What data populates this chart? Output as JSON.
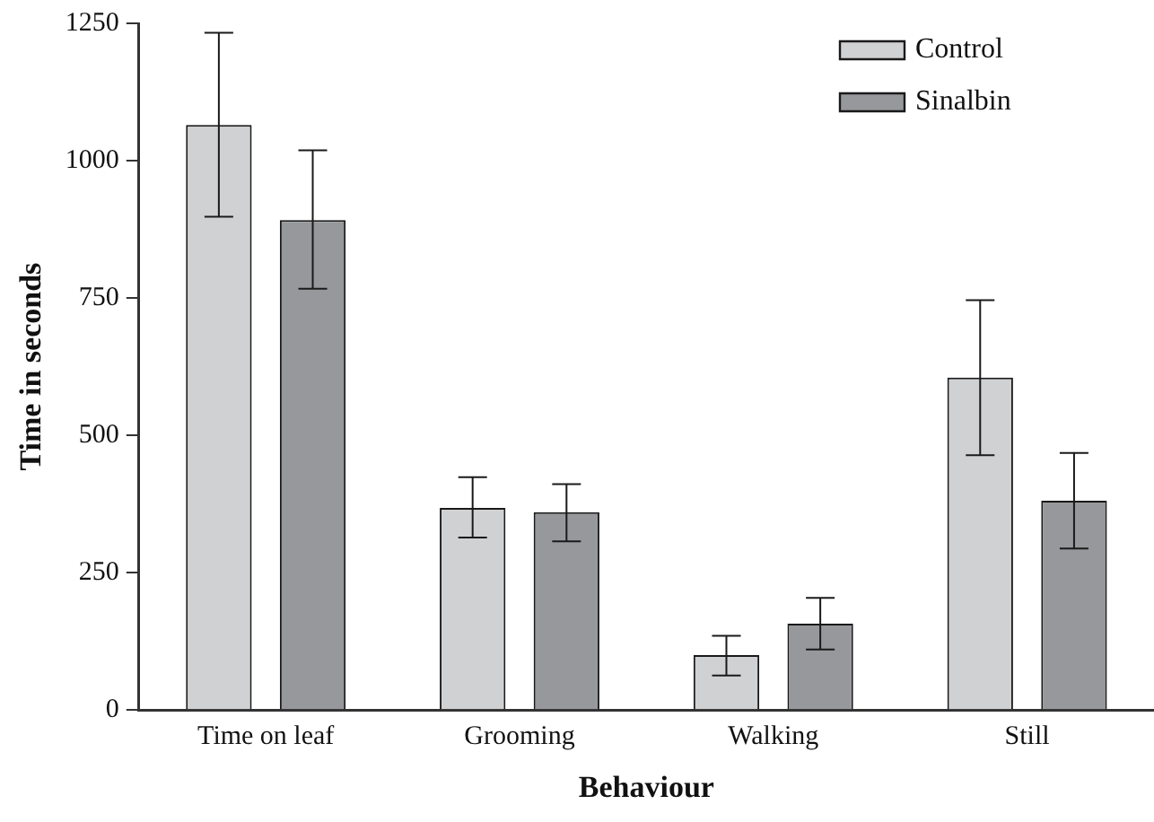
{
  "chart_data": {
    "type": "bar",
    "xlabel": "Behaviour",
    "ylabel": "Time in seconds",
    "categories": [
      "Time on leaf",
      "Grooming",
      "Walking",
      "Still"
    ],
    "series": [
      {
        "name": "Control",
        "color": "#d0d1d3",
        "values": [
          1065,
          368,
          100,
          605
        ],
        "errors": [
          [
            898,
            1233
          ],
          [
            314,
            424
          ],
          [
            63,
            135
          ],
          [
            464,
            746
          ]
        ]
      },
      {
        "name": "Sinalbin",
        "color": "#97989b",
        "values": [
          892,
          360,
          157,
          381
        ],
        "errors": [
          [
            767,
            1019
          ],
          [
            307,
            411
          ],
          [
            110,
            204
          ],
          [
            294,
            468
          ]
        ]
      }
    ],
    "ylim": [
      0,
      1250
    ],
    "yticks": [
      0,
      250,
      500,
      750,
      1000,
      1250
    ],
    "grid": false,
    "legend": "top right"
  }
}
